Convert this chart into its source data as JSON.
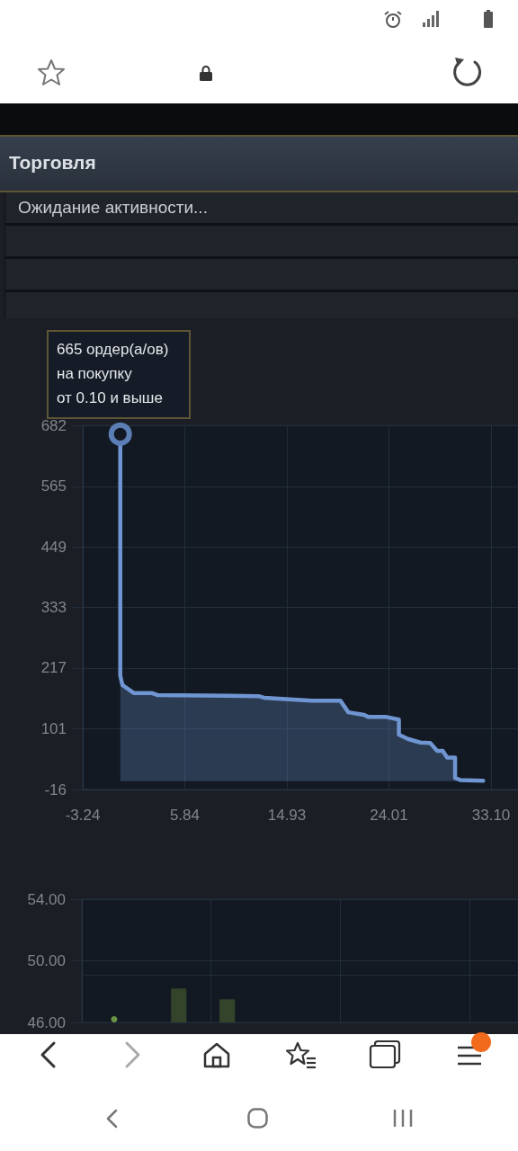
{
  "chart_data": [
    {
      "type": "area",
      "title": "Торговля",
      "subtitle": "Ожидание активности...",
      "x": [
        0.1,
        0.1,
        0.3,
        1.3,
        2.9,
        3.4,
        12.4,
        12.9,
        17.2,
        19.7,
        20.4,
        21.8,
        22.2,
        23.8,
        24.9,
        24.9,
        25.7,
        26.8,
        27.7,
        28.3,
        28.8,
        29.2,
        29.9,
        29.9,
        30.4,
        32.4
      ],
      "values": [
        665,
        202,
        184,
        169,
        169,
        165,
        163,
        160,
        154,
        154,
        132,
        127,
        123,
        123,
        118,
        89,
        81,
        74,
        73,
        58,
        58,
        45,
        45,
        6,
        2,
        1
      ],
      "color": "#6f96d2",
      "xlim": [
        -3.24,
        35.5
      ],
      "xticks": [
        -3.24,
        5.84,
        14.93,
        24.01,
        {
          "value": 33.1,
          "label": "33.10"
        }
      ],
      "ylim": [
        -16,
        682
      ],
      "yticks": [
        -16,
        101,
        217,
        333,
        449,
        565,
        682
      ],
      "grid": true,
      "annotations": [
        {
          "text": "665 ордер(а/ов)\nна покупку\nот 0.10 и выше",
          "x": 0.1,
          "y": 665
        }
      ]
    },
    {
      "type": "bar",
      "categories": [
        null,
        null,
        null,
        null,
        null,
        null,
        null,
        null,
        null,
        null,
        null,
        null,
        null,
        null,
        null,
        null,
        null,
        null,
        null,
        null,
        null,
        null,
        null,
        null,
        null,
        null,
        null,
        null
      ],
      "series": [
        {
          "color": "#34442a",
          "values": [
            null,
            null,
            null,
            null,
            null,
            null,
            48.2,
            null,
            null,
            47.5,
            null,
            null,
            null,
            null,
            null,
            null,
            null,
            null,
            null,
            null,
            null,
            null,
            null,
            null,
            null,
            null,
            null,
            null
          ]
        },
        {
          "type": "scatter",
          "color": "#7fb04a",
          "values": [
            null,
            null,
            46.2,
            null,
            null,
            null,
            null,
            null,
            null,
            null,
            null,
            null,
            null,
            null,
            null,
            null,
            null,
            null,
            null,
            null,
            null,
            null,
            null,
            null,
            null,
            null,
            null,
            null
          ]
        }
      ],
      "ylim": [
        46,
        54
      ],
      "yticks": [
        {
          "value": 46,
          "label": "46.00"
        },
        {
          "value": 50,
          "label": "50.00"
        },
        {
          "value": 54,
          "label": "54.00"
        }
      ],
      "grid": true,
      "ref_lines": [
        {
          "axis": "y",
          "value": 49.1,
          "color": "#222d3b"
        }
      ],
      "marker": "circle",
      "tick_labels": "y"
    }
  ]
}
